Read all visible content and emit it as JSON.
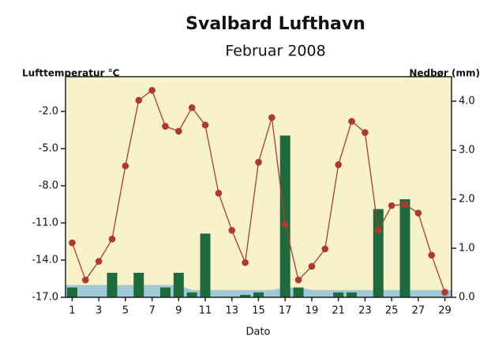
{
  "chart_data": {
    "type": "bar-line",
    "title": "Svalbard Lufthavn",
    "subtitle": "Februar 2008",
    "y_label": "Lufttemperatur °C",
    "y2_label": "Nedbør (mm)",
    "x_label": "Dato",
    "categories": [
      "1",
      null,
      "3",
      null,
      "5",
      null,
      "7",
      null,
      "9",
      null,
      "11",
      null,
      "13",
      null,
      "15",
      null,
      "17",
      null,
      "19",
      null,
      "21",
      null,
      "23",
      null,
      "25",
      null,
      "27",
      null,
      "29"
    ],
    "ylim": [
      -17,
      0.8
    ],
    "yticks": [
      {
        "value": -17,
        "label": "-17.0"
      },
      {
        "value": -14,
        "label": "-14.0"
      },
      {
        "value": -11,
        "label": "-11.0"
      },
      {
        "value": -8,
        "label": "-8.0"
      },
      {
        "value": -5,
        "label": "-5.0"
      },
      {
        "value": -2,
        "label": "-2.0"
      }
    ],
    "y2lim": [
      0,
      4.5
    ],
    "y2ticks": [
      {
        "value": 0,
        "label": "0.0"
      },
      {
        "value": 1,
        "label": "1.0"
      },
      {
        "value": 2,
        "label": "2.0"
      },
      {
        "value": 3,
        "label": "3.0"
      },
      {
        "value": 4,
        "label": "4.0"
      }
    ],
    "background": "#f7f2c9",
    "series": [
      {
        "type": "area",
        "axis": "y2",
        "color": "#9fc9d6",
        "values": [
          0.25,
          0.25,
          0.25,
          0.25,
          0.25,
          0.25,
          0.25,
          0.25,
          0.25,
          0.15,
          0.15,
          0.15,
          0.15,
          0.15,
          0.15,
          0.15,
          0.2,
          0.2,
          0.15,
          0.15,
          0.15,
          0.15,
          0.15,
          0.15,
          0.15,
          0.15,
          0.15,
          0.15,
          0.15
        ]
      },
      {
        "type": "bar",
        "axis": "y2",
        "color": "#1d6b3c",
        "values": [
          0.2,
          0,
          0,
          0.5,
          0,
          0.5,
          0,
          0.2,
          0.5,
          0.1,
          1.3,
          0,
          0,
          0.05,
          0.1,
          0,
          3.3,
          0.2,
          0,
          0,
          0.1,
          0.1,
          0,
          1.8,
          0,
          2.0,
          0,
          0,
          0
        ]
      },
      {
        "type": "line",
        "axis": "y",
        "color": "#b0392c",
        "values": [
          -12.6,
          -15.6,
          -14.1,
          -12.3,
          -6.4,
          -1.1,
          -0.3,
          -3.2,
          -3.6,
          -1.7,
          -3.1,
          -8.6,
          -11.6,
          -14.2,
          -6.1,
          -2.5,
          -11.1,
          -15.6,
          -14.5,
          -13.1,
          -6.3,
          -2.8,
          -3.7,
          -11.6,
          -9.6,
          -9.5,
          -10.2,
          -13.6,
          -16.6
        ]
      }
    ]
  }
}
